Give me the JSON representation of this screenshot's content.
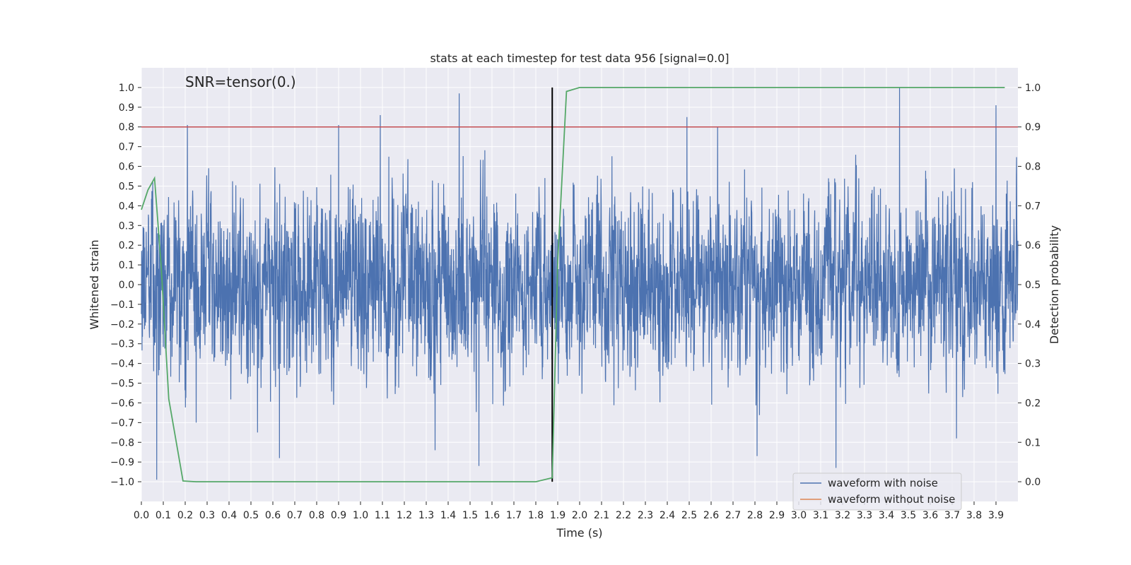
{
  "chart_data": {
    "type": "line",
    "title": "stats at each timestep for test data 956 [signal=0.0]",
    "annotation": "SNR=tensor(0.)",
    "xlabel": "Time (s)",
    "ylabel_left": "Whitened strain",
    "ylabel_right": "Detection probability",
    "xlim": [
      0.0,
      4.0
    ],
    "ylim_left": [
      -1.1,
      1.1
    ],
    "ylim_right": [
      -0.05,
      1.05
    ],
    "x_ticks": [
      0.0,
      0.1,
      0.2,
      0.3,
      0.4,
      0.5,
      0.6,
      0.7,
      0.8,
      0.9,
      1.0,
      1.1,
      1.2,
      1.3,
      1.4,
      1.5,
      1.6,
      1.7,
      1.8,
      1.9,
      2.0,
      2.1,
      2.2,
      2.3,
      2.4,
      2.5,
      2.6,
      2.7,
      2.8,
      2.9,
      3.0,
      3.1,
      3.2,
      3.3,
      3.4,
      3.5,
      3.6,
      3.7,
      3.8,
      3.9
    ],
    "x_tick_labels": [
      "0.0",
      "0.1",
      "0.2",
      "0.3",
      "0.4",
      "0.5",
      "0.6",
      "0.7",
      "0.8",
      "0.9",
      "1.0",
      "1.1",
      "1.2",
      "1.3",
      "1.4",
      "1.5",
      "1.6",
      "1.7",
      "1.8",
      "1.9",
      "2.0",
      "2.1",
      "2.2",
      "2.3",
      "2.4",
      "2.5",
      "2.6",
      "2.7",
      "2.8",
      "2.9",
      "3.0",
      "3.1",
      "3.2",
      "3.3",
      "3.4",
      "3.5",
      "3.6",
      "3.7",
      "3.8",
      "3.9"
    ],
    "y_ticks_left": [
      1.0,
      0.9,
      0.8,
      0.7,
      0.6,
      0.5,
      0.4,
      0.3,
      0.2,
      0.1,
      0.0,
      -0.1,
      -0.2,
      -0.3,
      -0.4,
      -0.5,
      -0.6,
      -0.7,
      -0.8,
      -0.9,
      -1.0
    ],
    "y_tick_labels_left": [
      "1.0",
      "0.9",
      "0.8",
      "0.7",
      "0.6",
      "0.5",
      "0.4",
      "0.3",
      "0.2",
      "0.1",
      "0.0",
      "−0.1",
      "−0.2",
      "−0.3",
      "−0.4",
      "−0.5",
      "−0.6",
      "−0.7",
      "−0.8",
      "−0.9",
      "−1.0"
    ],
    "y_ticks_right": [
      1.0,
      0.9,
      0.8,
      0.7,
      0.6,
      0.5,
      0.4,
      0.3,
      0.2,
      0.1,
      0.0
    ],
    "y_tick_labels_right": [
      "1.0",
      "0.9",
      "0.8",
      "0.7",
      "0.6",
      "0.5",
      "0.4",
      "0.3",
      "0.2",
      "0.1",
      "0.0"
    ],
    "grid": true,
    "legend_placement": "lower-right",
    "legend": [
      {
        "label": "waveform with noise",
        "color": "#4c72b0"
      },
      {
        "label": "waveform without noise",
        "color": "#dd8452"
      }
    ],
    "noise_waveform": {
      "name": "waveform with noise",
      "color": "#4c72b0",
      "typical_amplitude": 0.45,
      "x_range": [
        0.0,
        4.0
      ],
      "peaks": [
        {
          "x": 0.21,
          "y": 0.81
        },
        {
          "x": 0.9,
          "y": 0.81
        },
        {
          "x": 1.09,
          "y": 0.86
        },
        {
          "x": 1.45,
          "y": 0.97
        },
        {
          "x": 2.49,
          "y": 0.85
        },
        {
          "x": 2.63,
          "y": 0.8
        },
        {
          "x": 3.46,
          "y": 1.0
        },
        {
          "x": 3.9,
          "y": 0.91
        }
      ],
      "troughs": [
        {
          "x": 0.07,
          "y": -0.99
        },
        {
          "x": 0.25,
          "y": -0.7
        },
        {
          "x": 0.53,
          "y": -0.75
        },
        {
          "x": 0.63,
          "y": -0.88
        },
        {
          "x": 1.34,
          "y": -0.84
        },
        {
          "x": 1.54,
          "y": -0.92
        },
        {
          "x": 2.81,
          "y": -0.87
        },
        {
          "x": 3.17,
          "y": -0.93
        },
        {
          "x": 3.72,
          "y": -0.78
        }
      ]
    },
    "threshold": {
      "axis": "right",
      "y": 0.9,
      "color": "#c44e52"
    },
    "vertical_marker": {
      "x": 1.875,
      "y_range": [
        -1.0,
        1.0
      ],
      "color": "#000000"
    },
    "detection_probability": {
      "name": "detection probability",
      "color": "#55a868",
      "axis": "right",
      "x": [
        0.0,
        0.03,
        0.06,
        0.09,
        0.125,
        0.19,
        0.25,
        1.0,
        1.5,
        1.8,
        1.875,
        1.9,
        1.94,
        2.0,
        2.5,
        3.0,
        3.5,
        3.94
      ],
      "y": [
        0.69,
        0.74,
        0.77,
        0.55,
        0.21,
        0.002,
        0.0,
        0.0,
        0.0,
        0.0,
        0.01,
        0.56,
        0.99,
        1.0,
        1.0,
        1.0,
        1.0,
        1.0
      ]
    }
  }
}
